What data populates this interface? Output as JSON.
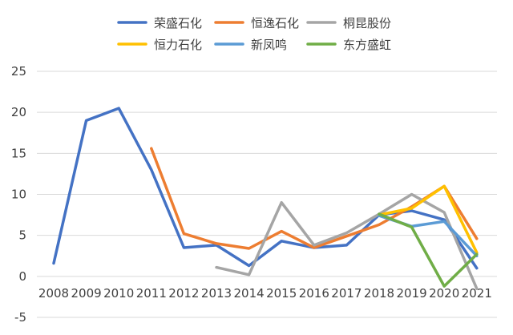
{
  "chart_data": {
    "type": "line",
    "title": "",
    "xlabel": "",
    "ylabel": "",
    "categories": [
      "2008",
      "2009",
      "2010",
      "2011",
      "2012",
      "2013",
      "2014",
      "2015",
      "2016",
      "2017",
      "2018",
      "2019",
      "2020",
      "2021"
    ],
    "ylim": [
      -5,
      25
    ],
    "yticks": [
      "-5",
      "0",
      "5",
      "10",
      "15",
      "20",
      "25"
    ],
    "grid": "horizontal",
    "legend_position": "top",
    "series": [
      {
        "name": "荣盛石化",
        "color": "#4472C4",
        "values": [
          1.6,
          19.0,
          20.5,
          13.0,
          3.5,
          3.8,
          1.3,
          4.3,
          3.5,
          3.8,
          7.5,
          8.0,
          6.9,
          1.0
        ]
      },
      {
        "name": "恒逸石化",
        "color": "#ED7D31",
        "values": [
          null,
          null,
          null,
          15.6,
          5.2,
          4.0,
          3.4,
          5.5,
          3.5,
          4.9,
          6.3,
          8.5,
          11.0,
          4.6
        ]
      },
      {
        "name": "桐昆股份",
        "color": "#A5A5A5",
        "values": [
          null,
          null,
          null,
          null,
          null,
          1.1,
          0.2,
          9.0,
          3.8,
          5.3,
          7.6,
          10.0,
          7.8,
          -1.5
        ]
      },
      {
        "name": "恒力石化",
        "color": "#FFC000",
        "values": [
          null,
          null,
          null,
          null,
          null,
          null,
          null,
          null,
          null,
          null,
          7.5,
          8.3,
          11.0,
          2.9
        ]
      },
      {
        "name": "新凤鸣",
        "color": "#5B9BD5",
        "values": [
          null,
          null,
          null,
          null,
          null,
          null,
          null,
          null,
          null,
          null,
          7.4,
          6.1,
          6.7,
          2.5
        ]
      },
      {
        "name": "东方盛虹",
        "color": "#70AD47",
        "values": [
          null,
          null,
          null,
          null,
          null,
          null,
          null,
          null,
          null,
          null,
          7.6,
          6.0,
          -1.2,
          2.7
        ]
      }
    ]
  }
}
